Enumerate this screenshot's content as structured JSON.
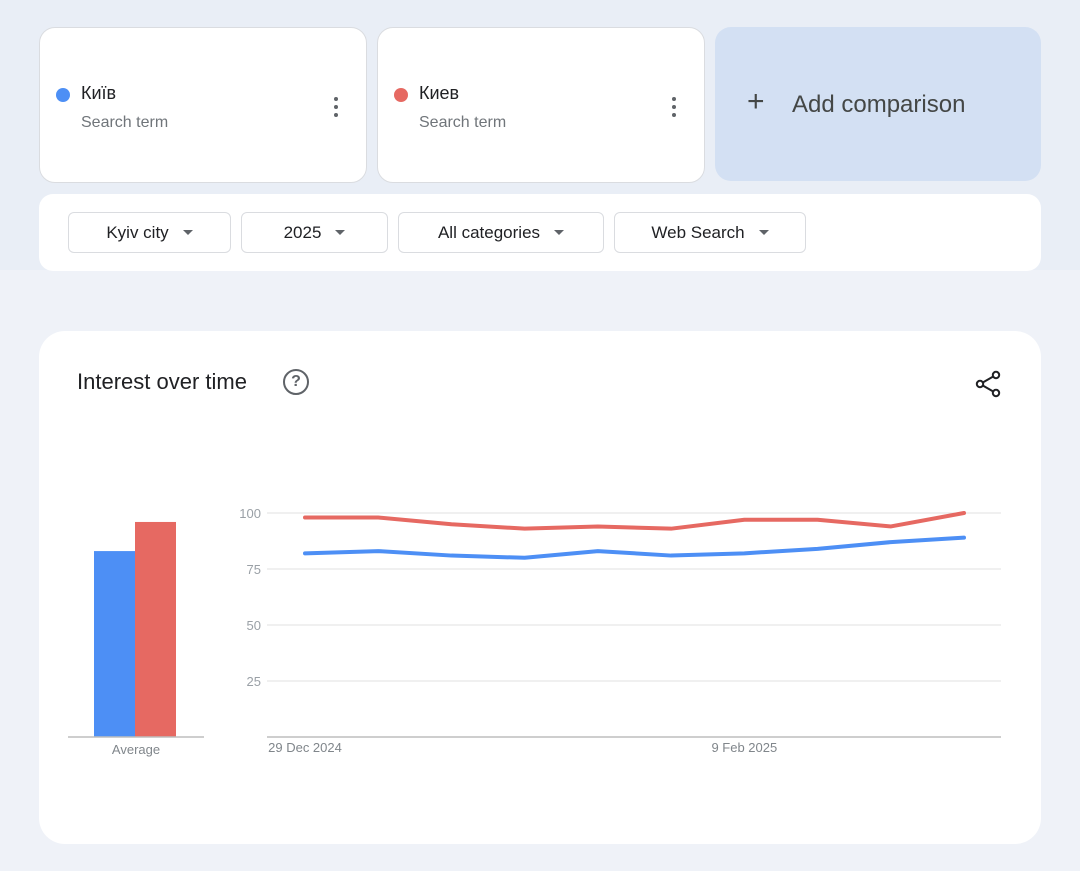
{
  "terms": [
    {
      "name": "Київ",
      "subtitle": "Search term",
      "color": "#4d8ff5"
    },
    {
      "name": "Киев",
      "subtitle": "Search term",
      "color": "#e66962"
    }
  ],
  "add_comparison": {
    "label": "Add comparison",
    "icon": "plus-icon"
  },
  "filters": [
    {
      "label": "Kyiv city"
    },
    {
      "label": "2025"
    },
    {
      "label": "All categories"
    },
    {
      "label": "Web Search"
    }
  ],
  "card": {
    "title": "Interest over time",
    "help_icon": "help-circle-icon",
    "share_icon": "share-icon"
  },
  "chart_data": {
    "type": "line",
    "x_labels": [
      "29 Dec 2024",
      "9 Feb 2025"
    ],
    "x": [
      "29 Dec 2024",
      "5 Jan 2025",
      "12 Jan 2025",
      "19 Jan 2025",
      "26 Jan 2025",
      "2 Feb 2025",
      "9 Feb 2025",
      "16 Feb 2025",
      "23 Feb 2025",
      "2 Mar 2025"
    ],
    "series": [
      {
        "name": "Київ",
        "color": "#4d8ff5",
        "values": [
          82,
          83,
          81,
          80,
          83,
          81,
          82,
          84,
          87,
          89
        ]
      },
      {
        "name": "Киев",
        "color": "#e66962",
        "values": [
          98,
          98,
          95,
          93,
          94,
          93,
          97,
          97,
          94,
          100
        ]
      }
    ],
    "yticks": [
      100,
      75,
      50,
      25
    ],
    "ylim": [
      0,
      100
    ],
    "average": {
      "label": "Average",
      "values": [
        83,
        96
      ]
    },
    "grid": true
  }
}
